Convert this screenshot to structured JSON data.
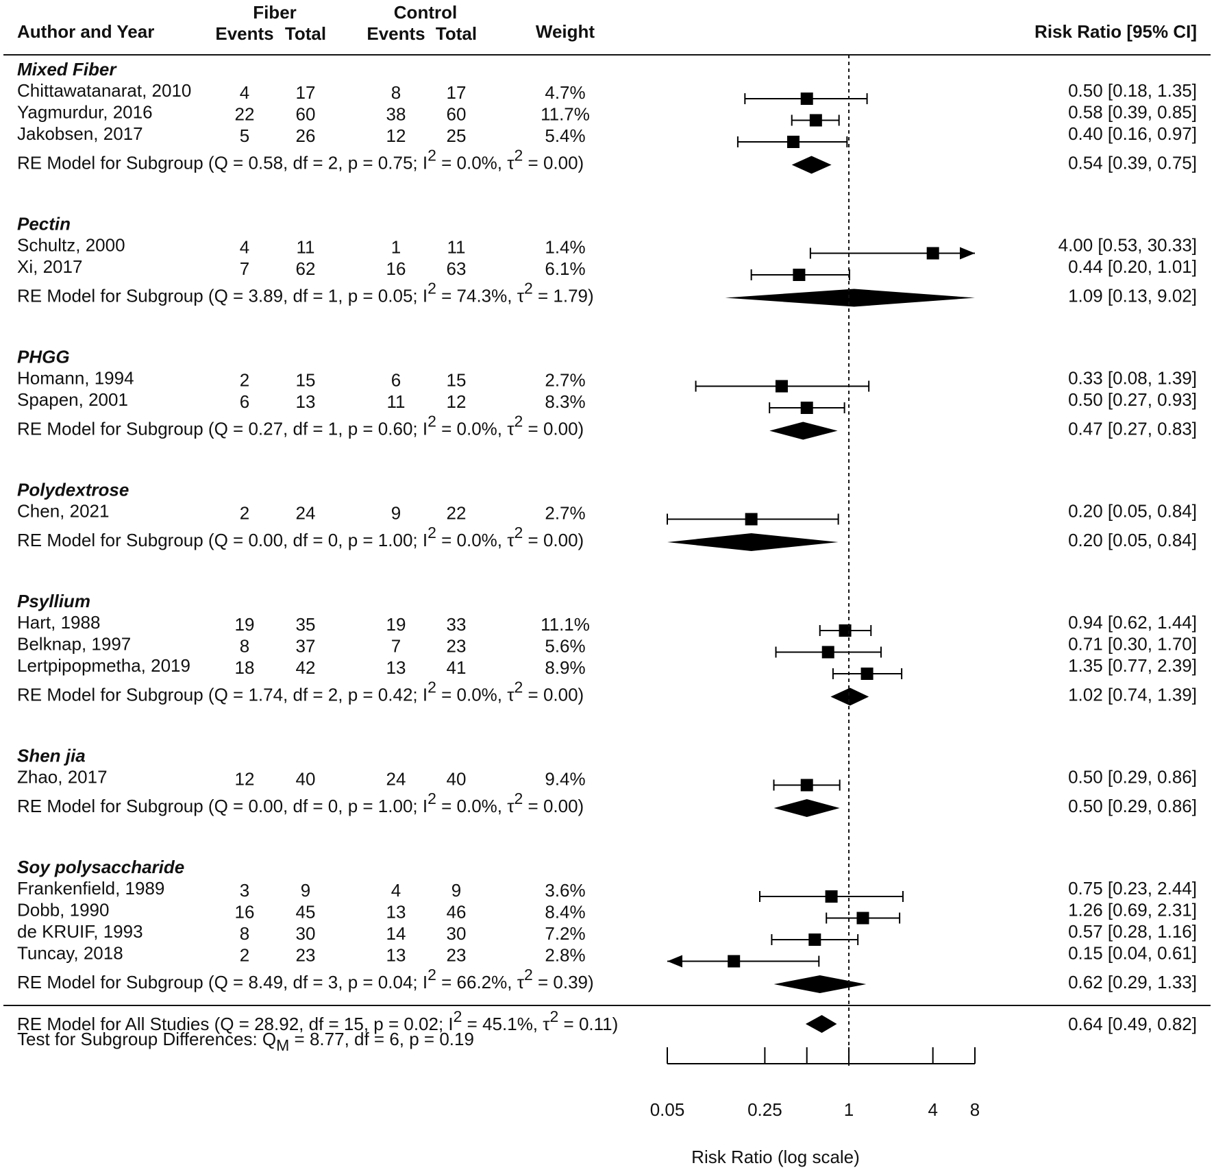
{
  "chart_data": {
    "type": "forest",
    "xscale": "log",
    "xlabel": "Risk Ratio (log scale)",
    "xlim": [
      0.05,
      8
    ],
    "ticks": [
      {
        "v": 0.05,
        "label": "0.05"
      },
      {
        "v": 0.25,
        "label": "0.25"
      },
      {
        "v": 0.5,
        "label": ""
      },
      {
        "v": 1,
        "label": "1"
      },
      {
        "v": 4,
        "label": "4"
      },
      {
        "v": 8,
        "label": "8"
      }
    ],
    "ref_line": 1,
    "headers": {
      "author": "Author and Year",
      "fiber": "Fiber",
      "control": "Control",
      "events": "Events",
      "total": "Total",
      "weight": "Weight",
      "rr": "Risk Ratio [95% CI]"
    },
    "groups": [
      {
        "name": "Mixed Fiber",
        "studies": [
          {
            "author": "Chittawatanarat, 2010",
            "fe": "4",
            "ft": "17",
            "ce": "8",
            "ct": "17",
            "weight": "4.7%",
            "rr": 0.5,
            "lo": 0.18,
            "hi": 1.35,
            "label": "0.50 [0.18,  1.35]"
          },
          {
            "author": "Yagmurdur, 2016",
            "fe": "22",
            "ft": "60",
            "ce": "38",
            "ct": "60",
            "weight": "11.7%",
            "rr": 0.58,
            "lo": 0.39,
            "hi": 0.85,
            "label": "0.58 [0.39,  0.85]"
          },
          {
            "author": "Jakobsen, 2017",
            "fe": "5",
            "ft": "26",
            "ce": "12",
            "ct": "25",
            "weight": "5.4%",
            "rr": 0.4,
            "lo": 0.16,
            "hi": 0.97,
            "label": "0.40 [0.16,  0.97]"
          }
        ],
        "model": {
          "pre": "RE Model for Subgroup (Q = 0.58, df = 2, p = 0.75; I",
          "mid": " = 0.0%, τ",
          "post": " = 0.00)",
          "sup": "2",
          "rr": 0.54,
          "lo": 0.39,
          "hi": 0.75,
          "label": "0.54 [0.39,  0.75]"
        }
      },
      {
        "name": "Pectin",
        "studies": [
          {
            "author": "Schultz, 2000",
            "fe": "4",
            "ft": "11",
            "ce": "1",
            "ct": "11",
            "weight": "1.4%",
            "rr": 4.0,
            "lo": 0.53,
            "hi": 30.33,
            "label": "4.00 [0.53, 30.33]"
          },
          {
            "author": "Xi, 2017",
            "fe": "7",
            "ft": "62",
            "ce": "16",
            "ct": "63",
            "weight": "6.1%",
            "rr": 0.44,
            "lo": 0.2,
            "hi": 1.01,
            "label": "0.44 [0.20,  1.01]"
          }
        ],
        "model": {
          "pre": "RE Model for Subgroup (Q = 3.89, df = 1, p = 0.05; I",
          "mid": " = 74.3%, τ",
          "post": " = 1.79)",
          "sup": "2",
          "rr": 1.09,
          "lo": 0.13,
          "hi": 9.02,
          "label": "1.09 [0.13,  9.02]"
        }
      },
      {
        "name": "PHGG",
        "studies": [
          {
            "author": "Homann, 1994",
            "fe": "2",
            "ft": "15",
            "ce": "6",
            "ct": "15",
            "weight": "2.7%",
            "rr": 0.33,
            "lo": 0.08,
            "hi": 1.39,
            "label": "0.33 [0.08,  1.39]"
          },
          {
            "author": "Spapen, 2001",
            "fe": "6",
            "ft": "13",
            "ce": "11",
            "ct": "12",
            "weight": "8.3%",
            "rr": 0.5,
            "lo": 0.27,
            "hi": 0.93,
            "label": "0.50 [0.27,  0.93]"
          }
        ],
        "model": {
          "pre": "RE Model for Subgroup (Q = 0.27, df = 1, p = 0.60; I",
          "mid": " = 0.0%, τ",
          "post": " = 0.00)",
          "sup": "2",
          "rr": 0.47,
          "lo": 0.27,
          "hi": 0.83,
          "label": "0.47 [0.27,  0.83]"
        }
      },
      {
        "name": "Polydextrose",
        "studies": [
          {
            "author": "Chen, 2021",
            "fe": "2",
            "ft": "24",
            "ce": "9",
            "ct": "22",
            "weight": "2.7%",
            "rr": 0.2,
            "lo": 0.05,
            "hi": 0.84,
            "label": "0.20 [0.05,  0.84]"
          }
        ],
        "model": {
          "pre": "RE Model for Subgroup (Q = 0.00, df = 0, p = 1.00; I",
          "mid": " = 0.0%, τ",
          "post": " = 0.00)",
          "sup": "2",
          "rr": 0.2,
          "lo": 0.05,
          "hi": 0.84,
          "label": "0.20 [0.05,  0.84]"
        }
      },
      {
        "name": "Psyllium",
        "studies": [
          {
            "author": "Hart, 1988",
            "fe": "19",
            "ft": "35",
            "ce": "19",
            "ct": "33",
            "weight": "11.1%",
            "rr": 0.94,
            "lo": 0.62,
            "hi": 1.44,
            "label": "0.94 [0.62,  1.44]"
          },
          {
            "author": "Belknap, 1997",
            "fe": "8",
            "ft": "37",
            "ce": "7",
            "ct": "23",
            "weight": "5.6%",
            "rr": 0.71,
            "lo": 0.3,
            "hi": 1.7,
            "label": "0.71 [0.30,  1.70]"
          },
          {
            "author": "Lertpipopmetha, 2019",
            "fe": "18",
            "ft": "42",
            "ce": "13",
            "ct": "41",
            "weight": "8.9%",
            "rr": 1.35,
            "lo": 0.77,
            "hi": 2.39,
            "label": "1.35 [0.77,  2.39]"
          }
        ],
        "model": {
          "pre": "RE Model for Subgroup (Q = 1.74, df = 2, p = 0.42; I",
          "mid": " = 0.0%, τ",
          "post": " = 0.00)",
          "sup": "2",
          "rr": 1.02,
          "lo": 0.74,
          "hi": 1.39,
          "label": "1.02 [0.74,  1.39]"
        }
      },
      {
        "name": "Shen jia",
        "studies": [
          {
            "author": "Zhao, 2017",
            "fe": "12",
            "ft": "40",
            "ce": "24",
            "ct": "40",
            "weight": "9.4%",
            "rr": 0.5,
            "lo": 0.29,
            "hi": 0.86,
            "label": "0.50 [0.29,  0.86]"
          }
        ],
        "model": {
          "pre": "RE Model for Subgroup (Q = 0.00, df = 0, p = 1.00; I",
          "mid": " = 0.0%, τ",
          "post": " = 0.00)",
          "sup": "2",
          "rr": 0.5,
          "lo": 0.29,
          "hi": 0.86,
          "label": "0.50 [0.29,  0.86]"
        }
      },
      {
        "name": "Soy polysaccharide",
        "studies": [
          {
            "author": "Frankenfield, 1989",
            "fe": "3",
            "ft": "9",
            "ce": "4",
            "ct": "9",
            "weight": "3.6%",
            "rr": 0.75,
            "lo": 0.23,
            "hi": 2.44,
            "label": "0.75 [0.23,  2.44]"
          },
          {
            "author": "Dobb, 1990",
            "fe": "16",
            "ft": "45",
            "ce": "13",
            "ct": "46",
            "weight": "8.4%",
            "rr": 1.26,
            "lo": 0.69,
            "hi": 2.31,
            "label": "1.26 [0.69,  2.31]"
          },
          {
            "author": "de KRUIF, 1993",
            "fe": "8",
            "ft": "30",
            "ce": "14",
            "ct": "30",
            "weight": "7.2%",
            "rr": 0.57,
            "lo": 0.28,
            "hi": 1.16,
            "label": "0.57 [0.28,  1.16]"
          },
          {
            "author": "Tuncay, 2018",
            "fe": "2",
            "ft": "23",
            "ce": "13",
            "ct": "23",
            "weight": "2.8%",
            "rr": 0.15,
            "lo": 0.04,
            "hi": 0.61,
            "label": "0.15 [0.04,  0.61]"
          }
        ],
        "model": {
          "pre": "RE Model for Subgroup (Q = 8.49, df = 3, p = 0.04; I",
          "mid": " = 66.2%, τ",
          "post": " = 0.39)",
          "sup": "2",
          "rr": 0.62,
          "lo": 0.29,
          "hi": 1.33,
          "label": "0.62 [0.29,  1.33]"
        }
      }
    ],
    "overall": {
      "pre": "RE Model for All Studies (Q = 28.92, df = 15, p = 0.02; I",
      "mid": " = 45.1%, τ",
      "post": " = 0.11)",
      "sup": "2",
      "rr": 0.64,
      "lo": 0.49,
      "hi": 0.82,
      "label": "0.64 [0.49,  0.82]"
    },
    "subgroup_test": {
      "pre": "Test for Subgroup Differences: Q",
      "sub": "M",
      "post": " = 8.77, df = 6, p = 0.19"
    }
  }
}
